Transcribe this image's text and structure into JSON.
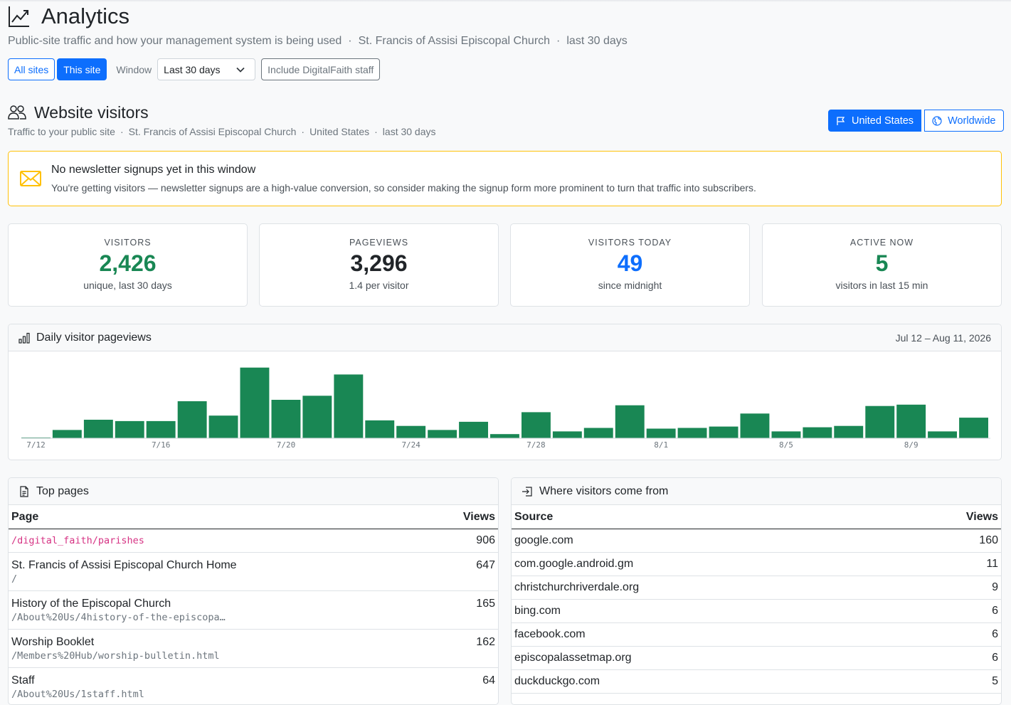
{
  "header": {
    "title": "Analytics",
    "subtitle": "Public-site traffic and how your management system is being used",
    "church": "St. Francis of Assisi Episcopal Church",
    "range": "last 30 days"
  },
  "controls": {
    "all_sites": "All sites",
    "this_site": "This site",
    "window_label": "Window",
    "window_value": "Last 30 days",
    "staff_toggle": "Include DigitalFaith staff"
  },
  "visitors_section": {
    "title": "Website visitors",
    "sub_traffic": "Traffic to your public site",
    "sub_church": "St. Francis of Assisi Episcopal Church",
    "sub_country": "United States",
    "sub_range": "last 30 days",
    "btn_us": "United States",
    "btn_world": "Worldwide"
  },
  "alert": {
    "title": "No newsletter signups yet in this window",
    "text": "You're getting visitors — newsletter signups are a high-value conversion, so consider making the signup form more prominent to turn that traffic into subscribers."
  },
  "stats": [
    {
      "label": "VISITORS",
      "value": "2,426",
      "caption": "unique, last 30 days",
      "color": "#198754"
    },
    {
      "label": "PAGEVIEWS",
      "value": "3,296",
      "caption": "1.4 per visitor",
      "color": "#212529"
    },
    {
      "label": "VISITORS TODAY",
      "value": "49",
      "caption": "since midnight",
      "color": "#0d6efd"
    },
    {
      "label": "ACTIVE NOW",
      "value": "5",
      "caption": "visitors in last 15 min",
      "color": "#198754"
    }
  ],
  "chart_panel": {
    "title": "Daily visitor pageviews",
    "range": "Jul 12 – Aug 11, 2026"
  },
  "chart_data": {
    "type": "bar",
    "categories": [
      "7/12",
      "7/13",
      "7/14",
      "7/15",
      "7/16",
      "7/17",
      "7/18",
      "7/19",
      "7/20",
      "7/21",
      "7/22",
      "7/23",
      "7/24",
      "7/25",
      "7/26",
      "7/27",
      "7/28",
      "7/29",
      "7/30",
      "7/31",
      "8/1",
      "8/2",
      "8/3",
      "8/4",
      "8/5",
      "8/6",
      "8/7",
      "8/8",
      "8/9",
      "8/10",
      "8/11"
    ],
    "tick_labels": [
      "7/12",
      "7/16",
      "7/20",
      "7/24",
      "7/28",
      "8/1",
      "8/5",
      "8/9"
    ],
    "values": [
      1,
      12,
      27,
      25,
      25,
      54,
      33,
      103,
      56,
      62,
      93,
      26,
      18,
      12,
      24,
      6,
      38,
      10,
      15,
      48,
      14,
      15,
      17,
      36,
      10,
      16,
      18,
      47,
      49,
      10,
      30
    ],
    "ylim": [
      0,
      110
    ],
    "color": "#198754",
    "grid": false
  },
  "top_pages": {
    "title": "Top pages",
    "col_page": "Page",
    "col_views": "Views",
    "rows": [
      {
        "title": "",
        "path": "/digital_faith/parishes",
        "views": "906"
      },
      {
        "title": "St. Francis of Assisi Episcopal Church Home",
        "path": "/",
        "views": "647"
      },
      {
        "title": "History of the Episcopal Church",
        "path": "/About%20Us/4history-of-the-episcopa…",
        "views": "165"
      },
      {
        "title": "Worship Booklet",
        "path": "/Members%20Hub/worship-bulletin.html",
        "views": "162"
      },
      {
        "title": "Staff",
        "path": "/About%20Us/1staff.html",
        "views": "64"
      }
    ]
  },
  "sources": {
    "title": "Where visitors come from",
    "col_source": "Source",
    "col_views": "Views",
    "rows": [
      {
        "source": "google.com",
        "views": "160"
      },
      {
        "source": "com.google.android.gm",
        "views": "11"
      },
      {
        "source": "christchurchriverdale.org",
        "views": "9"
      },
      {
        "source": "bing.com",
        "views": "6"
      },
      {
        "source": "facebook.com",
        "views": "6"
      },
      {
        "source": "episcopalassetmap.org",
        "views": "6"
      },
      {
        "source": "duckduckgo.com",
        "views": "5"
      }
    ]
  }
}
